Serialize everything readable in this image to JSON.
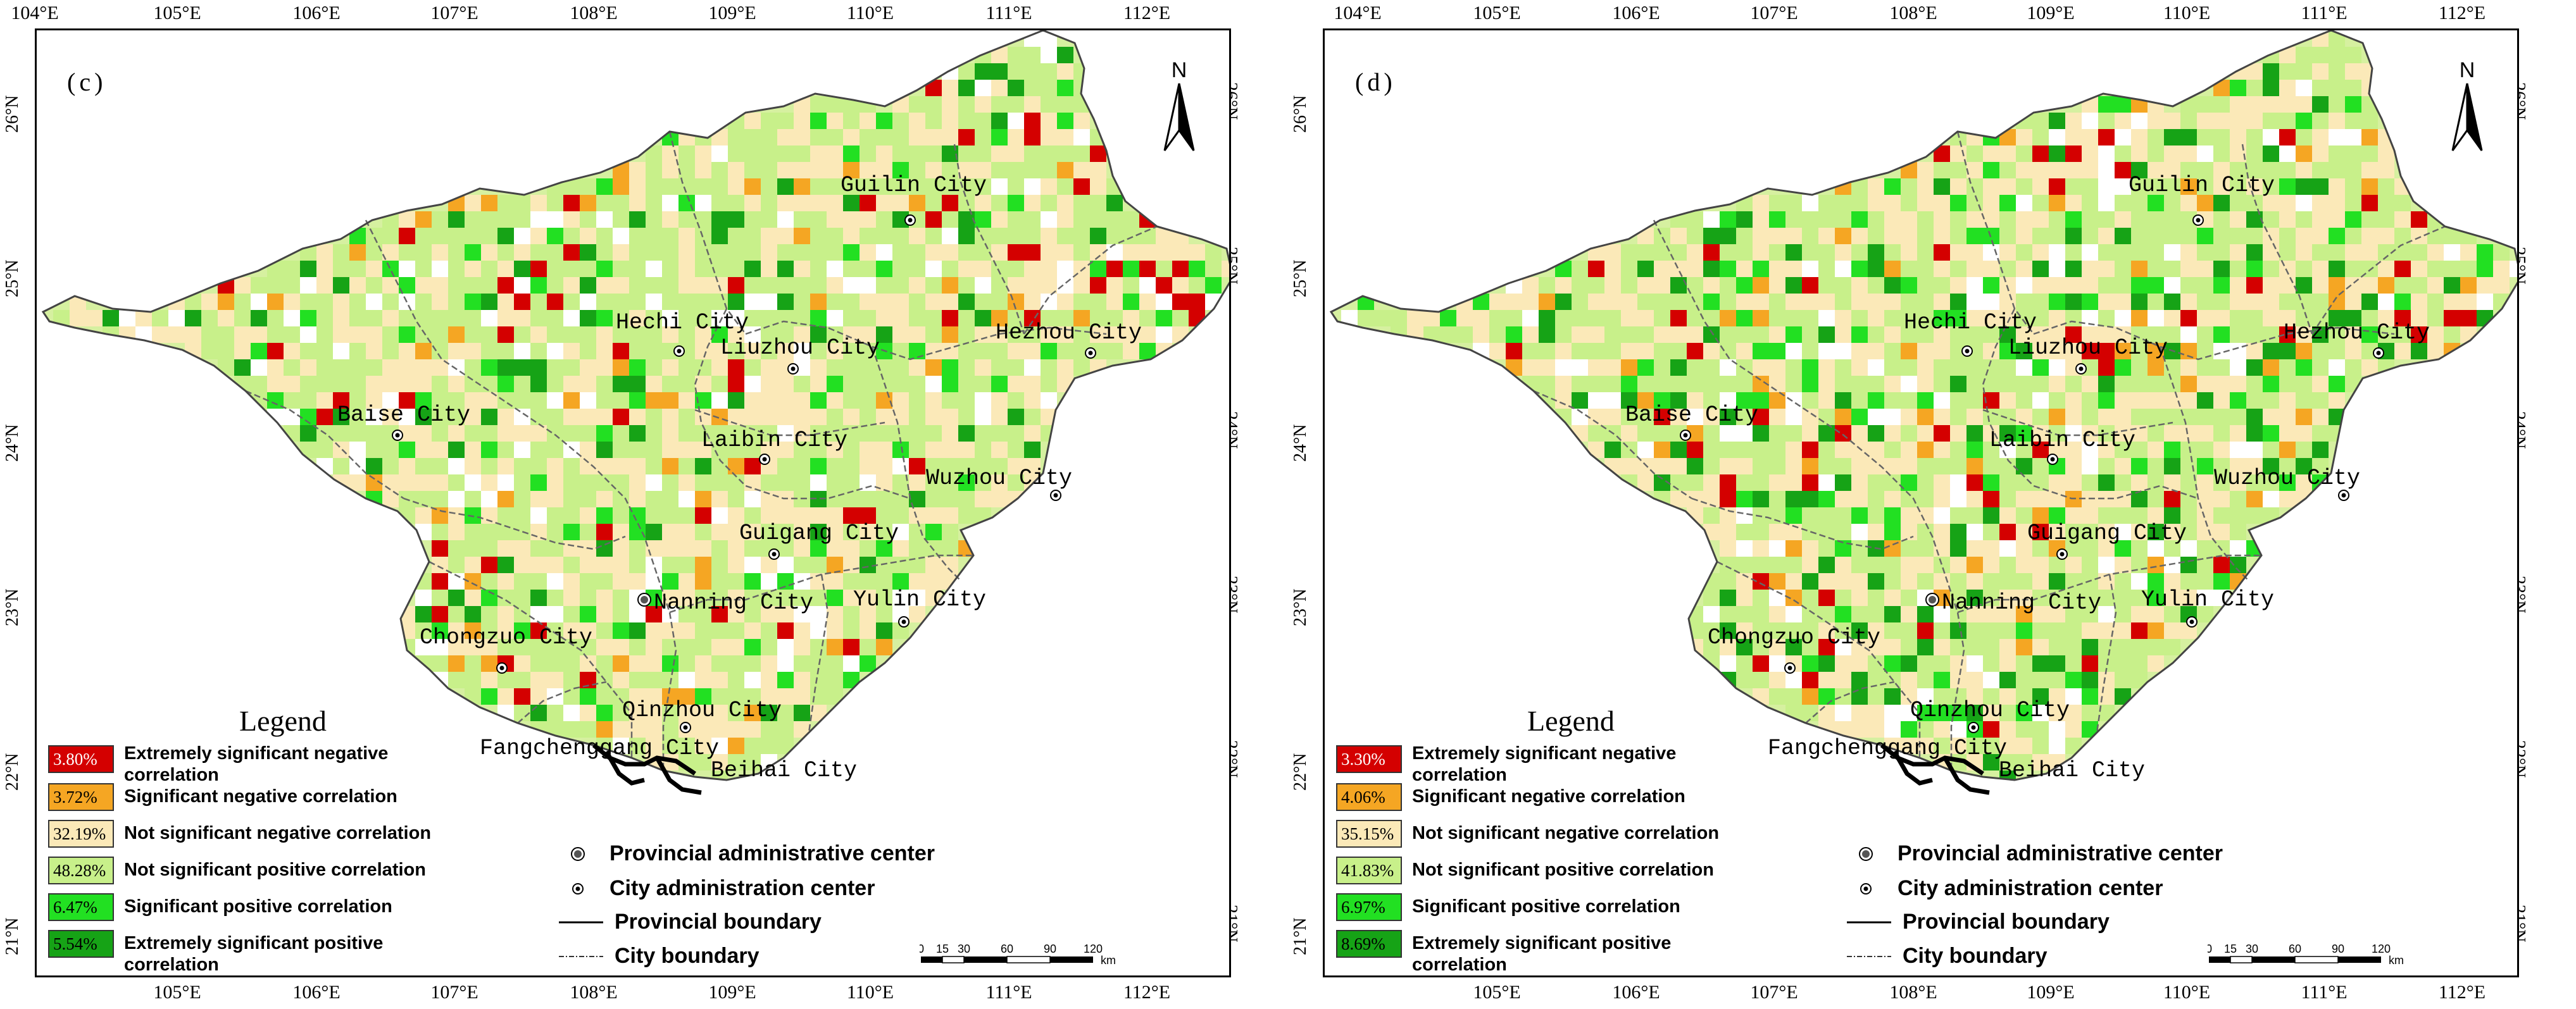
{
  "panels": [
    {
      "label": "(c)",
      "lon_ticks_top": [
        "104°E",
        "105°E",
        "106°E",
        "107°E",
        "108°E",
        "109°E",
        "110°E",
        "111°E",
        "112°E"
      ],
      "lon_ticks_bottom": [
        "105°E",
        "106°E",
        "107°E",
        "108°E",
        "109°E",
        "110°E",
        "111°E",
        "112°E"
      ],
      "lat_ticks": [
        "26°N",
        "25°N",
        "24°N",
        "23°N",
        "22°N",
        "21°N"
      ],
      "north_label": "N",
      "cities": [
        {
          "name": "Guilin City"
        },
        {
          "name": "Hechi City"
        },
        {
          "name": "Liuzhou City"
        },
        {
          "name": "Hezhou City"
        },
        {
          "name": "Baise City"
        },
        {
          "name": "Laibin City"
        },
        {
          "name": "Wuzhou City"
        },
        {
          "name": "Guigang City"
        },
        {
          "name": "Nanning City"
        },
        {
          "name": "Yulin City"
        },
        {
          "name": "Chongzuo City"
        },
        {
          "name": "Qinzhou City"
        },
        {
          "name": "Fangchenggang City"
        },
        {
          "name": "Beihai City"
        }
      ],
      "legend": {
        "title": "Legend",
        "items": [
          {
            "pct": "3.80%",
            "label": "Extremely significant negative correlation",
            "color": "#d40000"
          },
          {
            "pct": "3.72%",
            "label": "Significant negative correlation",
            "color": "#f5a623"
          },
          {
            "pct": "32.19%",
            "label": "Not significant negative correlation",
            "color": "#fbe9b8"
          },
          {
            "pct": "48.28%",
            "label": "Not significant positive correlation",
            "color": "#c8f08a"
          },
          {
            "pct": "6.47%",
            "label": "Significant positive correlation",
            "color": "#22e022"
          },
          {
            "pct": "5.54%",
            "label": "Extremely significant positive correlation",
            "color": "#16a316"
          }
        ]
      },
      "symbols": [
        {
          "label": "Provincial administrative center",
          "icon": "provincial-center-icon"
        },
        {
          "label": "City administration center",
          "icon": "city-center-icon"
        },
        {
          "label": "Provincial boundary",
          "icon": "provincial-boundary-icon"
        },
        {
          "label": "City boundary",
          "icon": "city-boundary-icon"
        }
      ],
      "scale": {
        "labels": [
          "0",
          "15",
          "30",
          "60",
          "90",
          "120"
        ],
        "unit": "km"
      },
      "map_mix": [
        0.038,
        0.037,
        0.322,
        0.483,
        0.065,
        0.055
      ]
    },
    {
      "label": "(d)",
      "lon_ticks_top": [
        "104°E",
        "105°E",
        "106°E",
        "107°E",
        "108°E",
        "109°E",
        "110°E",
        "111°E",
        "112°E"
      ],
      "lon_ticks_bottom": [
        "105°E",
        "106°E",
        "107°E",
        "108°E",
        "109°E",
        "110°E",
        "111°E",
        "112°E"
      ],
      "lat_ticks": [
        "26°N",
        "25°N",
        "24°N",
        "23°N",
        "22°N",
        "21°N"
      ],
      "north_label": "N",
      "cities": [
        {
          "name": "Guilin City"
        },
        {
          "name": "Hechi City"
        },
        {
          "name": "Liuzhou City"
        },
        {
          "name": "Hezhou City"
        },
        {
          "name": "Baise City"
        },
        {
          "name": "Laibin City"
        },
        {
          "name": "Wuzhou City"
        },
        {
          "name": "Guigang City"
        },
        {
          "name": "Nanning City"
        },
        {
          "name": "Yulin City"
        },
        {
          "name": "Chongzuo City"
        },
        {
          "name": "Qinzhou City"
        },
        {
          "name": "Fangchenggang City"
        },
        {
          "name": "Beihai City"
        }
      ],
      "legend": {
        "title": "Legend",
        "items": [
          {
            "pct": "3.30%",
            "label": "Extremely significant negative correlation",
            "color": "#d40000"
          },
          {
            "pct": "4.06%",
            "label": "Significant negative correlation",
            "color": "#f5a623"
          },
          {
            "pct": "35.15%",
            "label": "Not significant negative correlation",
            "color": "#fbe9b8"
          },
          {
            "pct": "41.83%",
            "label": "Not significant positive correlation",
            "color": "#c8f08a"
          },
          {
            "pct": "6.97%",
            "label": "Significant positive correlation",
            "color": "#22e022"
          },
          {
            "pct": "8.69%",
            "label": "Extremely significant positive correlation",
            "color": "#16a316"
          }
        ]
      },
      "symbols": [
        {
          "label": "Provincial administrative center",
          "icon": "provincial-center-icon"
        },
        {
          "label": "City administration center",
          "icon": "city-center-icon"
        },
        {
          "label": "Provincial boundary",
          "icon": "provincial-boundary-icon"
        },
        {
          "label": "City boundary",
          "icon": "city-boundary-icon"
        }
      ],
      "scale": {
        "labels": [
          "0",
          "15",
          "30",
          "60",
          "90",
          "120"
        ],
        "unit": "km"
      },
      "map_mix": [
        0.033,
        0.041,
        0.352,
        0.418,
        0.07,
        0.087
      ]
    }
  ]
}
